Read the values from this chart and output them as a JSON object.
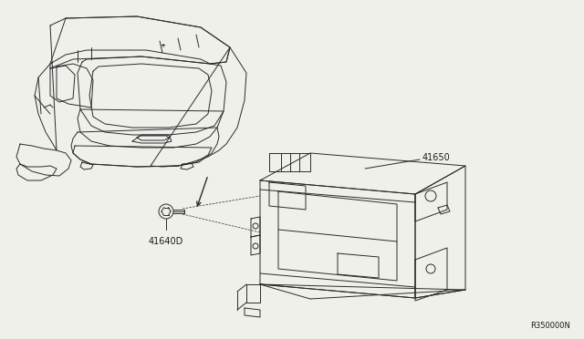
{
  "background_color": "#f0f0eb",
  "fig_width": 6.4,
  "fig_height": 3.72,
  "dpi": 100,
  "label_41650": "41650",
  "label_41640D": "41640D",
  "label_ref": "R350000N",
  "line_color": "#2a2a2a",
  "text_color": "#1a1a1a",
  "lw_main": 0.7,
  "lw_dash": 0.5,
  "fontsize_label": 7.0,
  "fontsize_ref": 6.0
}
